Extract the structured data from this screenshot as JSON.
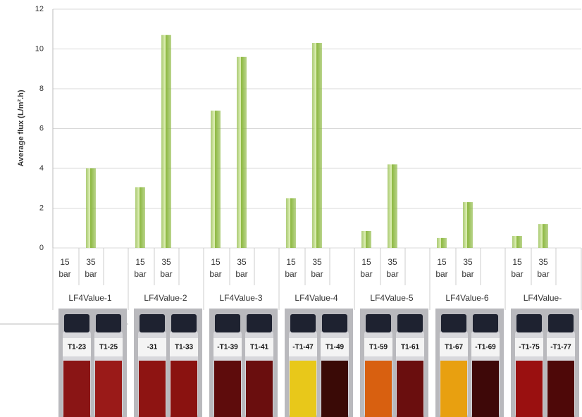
{
  "chart_data": {
    "type": "bar",
    "y_label": "Average flux (L/m².h)",
    "categories": [
      "LF4Value-1",
      "LF4Value-2",
      "LF4Value-3",
      "LF4Value-4",
      "LF4Value-5",
      "LF4Value-6",
      "LF4Value-"
    ],
    "series": [
      {
        "name": "15 bar",
        "color": "#8cb840",
        "values": [
          null,
          3.05,
          6.9,
          2.5,
          0.85,
          0.5,
          0.6
        ]
      },
      {
        "name": "35 bar",
        "color": "#8cb840",
        "values": [
          4.0,
          10.7,
          9.6,
          10.3,
          4.2,
          2.3,
          1.2
        ]
      }
    ],
    "ylim": [
      0,
      12
    ],
    "yticks": [
      0,
      2,
      4,
      6,
      8,
      10,
      12
    ],
    "grid": true,
    "vial_labels": [
      [
        "T1-23",
        "T1-25"
      ],
      [
        "-31",
        "T1-33"
      ],
      [
        "-T1-39",
        "T1-41"
      ],
      [
        "-T1-47",
        "T1-49"
      ],
      [
        "T1-59",
        "T1-61"
      ],
      [
        "T1-67",
        "-T1-69"
      ],
      [
        "-T1-75",
        "-T1-77"
      ]
    ]
  }
}
